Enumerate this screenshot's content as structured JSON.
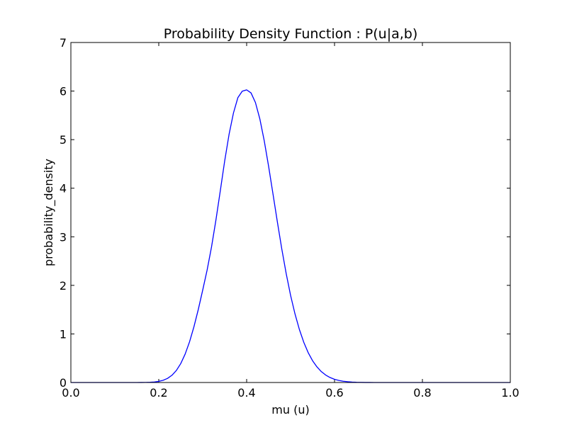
{
  "chart_data": {
    "type": "line",
    "title": "Probability Density Function : P(u|a,b)",
    "xlabel": "mu (u)",
    "ylabel": "probability_density",
    "xlim": [
      0.0,
      1.0
    ],
    "ylim": [
      0,
      7
    ],
    "xticks": [
      0.0,
      0.2,
      0.4,
      0.6,
      0.8,
      1.0
    ],
    "xtick_labels": [
      "0.0",
      "0.2",
      "0.4",
      "0.6",
      "0.8",
      "1.0"
    ],
    "yticks": [
      0,
      1,
      2,
      3,
      4,
      5,
      6,
      7
    ],
    "ytick_labels": [
      "0",
      "1",
      "2",
      "3",
      "4",
      "5",
      "6",
      "7"
    ],
    "grid": false,
    "series": [
      {
        "name": "pdf",
        "color": "#0000ff",
        "x": [
          0.0,
          0.01,
          0.02,
          0.03,
          0.04,
          0.05,
          0.06,
          0.07,
          0.08,
          0.09,
          0.1,
          0.11,
          0.12,
          0.13,
          0.14,
          0.15,
          0.16,
          0.17,
          0.18,
          0.19,
          0.2,
          0.21,
          0.22,
          0.23,
          0.24,
          0.25,
          0.26,
          0.27,
          0.28,
          0.29,
          0.3,
          0.31,
          0.32,
          0.33,
          0.34,
          0.35,
          0.36,
          0.37,
          0.38,
          0.39,
          0.4,
          0.41,
          0.42,
          0.43,
          0.44,
          0.45,
          0.46,
          0.47,
          0.48,
          0.49,
          0.5,
          0.51,
          0.52,
          0.53,
          0.54,
          0.55,
          0.56,
          0.57,
          0.58,
          0.59,
          0.6,
          0.61,
          0.62,
          0.63,
          0.64,
          0.65,
          0.66,
          0.67,
          0.68,
          0.69,
          0.7,
          0.71,
          0.72,
          0.73,
          0.74,
          0.75,
          0.76,
          0.77,
          0.78,
          0.79,
          0.8,
          0.81,
          0.82,
          0.83,
          0.84,
          0.85,
          0.86,
          0.87,
          0.88,
          0.89,
          0.9,
          0.91,
          0.92,
          0.93,
          0.94,
          0.95,
          0.96,
          0.97,
          0.98,
          0.99,
          1.0
        ],
        "values": [
          0,
          0,
          0,
          0,
          0,
          0,
          0,
          0,
          0,
          0,
          0,
          0,
          0,
          0,
          0,
          0,
          0.001,
          0.002,
          0.005,
          0.011,
          0.023,
          0.046,
          0.085,
          0.149,
          0.247,
          0.389,
          0.584,
          0.836,
          1.146,
          1.505,
          1.902,
          2.314,
          2.787,
          3.339,
          3.944,
          4.56,
          5.109,
          5.549,
          5.864,
          5.998,
          6.025,
          5.962,
          5.764,
          5.428,
          4.979,
          4.45,
          3.878,
          3.301,
          2.748,
          2.242,
          1.794,
          1.413,
          1.092,
          0.828,
          0.616,
          0.449,
          0.321,
          0.224,
          0.153,
          0.102,
          0.066,
          0.042,
          0.026,
          0.016,
          0.009,
          0.005,
          0.003,
          0.001,
          0.001,
          0,
          0,
          0,
          0,
          0,
          0,
          0,
          0,
          0,
          0,
          0,
          0,
          0,
          0,
          0,
          0,
          0,
          0,
          0,
          0,
          0,
          0,
          0,
          0,
          0,
          0,
          0,
          0,
          0,
          0,
          0,
          0
        ]
      }
    ]
  }
}
